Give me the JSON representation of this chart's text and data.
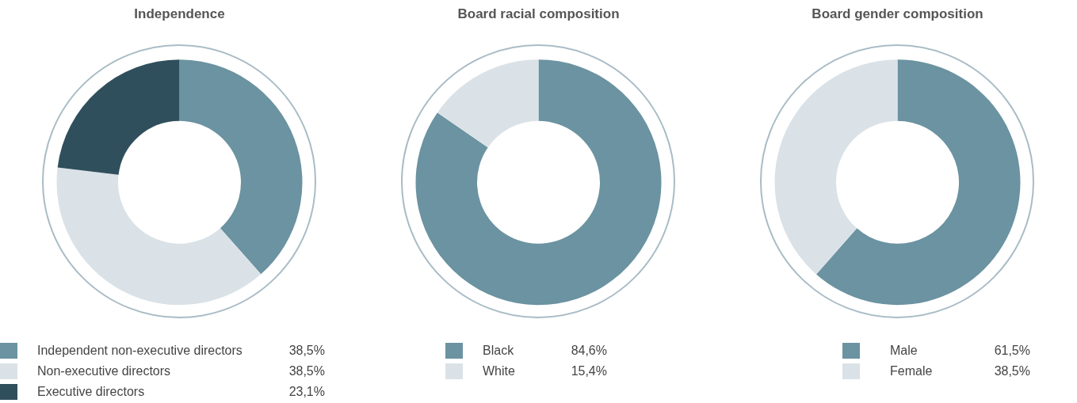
{
  "chart_data": [
    {
      "type": "donut",
      "title": "Independence",
      "categories": [
        "Independent non-executive directors",
        "Non-executive directors",
        "Executive directors"
      ],
      "values": [
        38.5,
        38.5,
        23.1
      ],
      "value_labels": [
        "38,5%",
        "38,5%",
        "23,1%"
      ],
      "colors": [
        "#6b93a1",
        "#dae2e7",
        "#304f5c"
      ],
      "legend": "bottom"
    },
    {
      "type": "donut",
      "title": "Board racial composition",
      "categories": [
        "Black",
        "White"
      ],
      "values": [
        84.6,
        15.4
      ],
      "value_labels": [
        "84,6%",
        "15,4%"
      ],
      "colors": [
        "#6b93a1",
        "#dae2e7"
      ],
      "legend": "bottom"
    },
    {
      "type": "donut",
      "title": "Board gender composition",
      "categories": [
        "Male",
        "Female"
      ],
      "values": [
        61.5,
        38.5
      ],
      "value_labels": [
        "61,5%",
        "38,5%"
      ],
      "colors": [
        "#6b93a1",
        "#dae2e7"
      ],
      "legend": "bottom"
    }
  ]
}
